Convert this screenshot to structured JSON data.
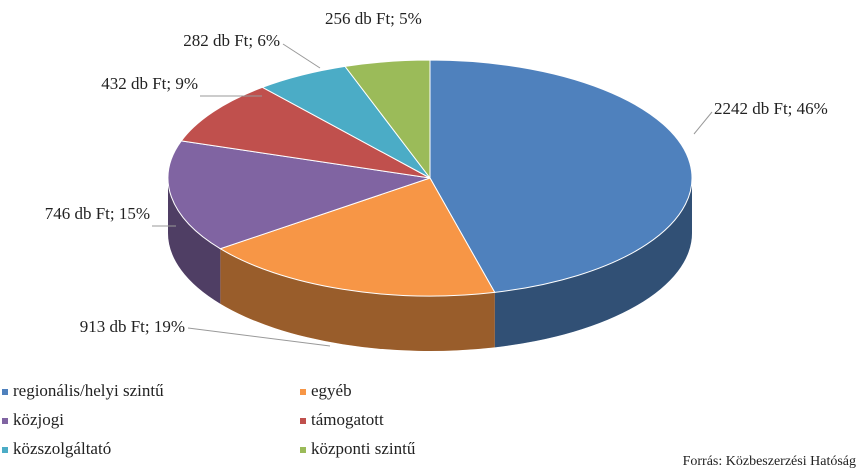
{
  "chart_data": {
    "type": "pie",
    "categories": [
      "regionális/helyi szintű",
      "egyéb",
      "közjogi",
      "támogatott",
      "közszolgáltató",
      "központi szintű"
    ],
    "values": [
      2242,
      913,
      746,
      432,
      282,
      256
    ],
    "value_labels": [
      "2242 db Ft; 46%",
      "913 db Ft; 19%",
      "746 db Ft; 15%",
      "432 db Ft; 9%",
      "282 db Ft; 6%",
      "256 db Ft; 5%"
    ],
    "colors": [
      "#4f81bd",
      "#f79646",
      "#8064a2",
      "#c0504d",
      "#4bacc6",
      "#9bbb59"
    ],
    "source": "Forrás: Közbeszerzési Hatóság"
  }
}
